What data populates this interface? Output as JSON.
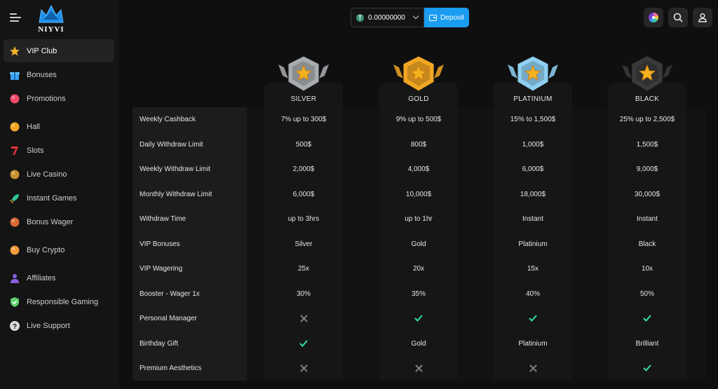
{
  "brand": {
    "name": "NIYVI"
  },
  "sidebar": {
    "items": [
      {
        "label": "VIP Club",
        "icon": "star-icon",
        "active": true
      },
      {
        "label": "Bonuses",
        "icon": "gift-icon"
      },
      {
        "label": "Promotions",
        "icon": "candy-icon"
      },
      {
        "label": "Hall",
        "icon": "chips-icon"
      },
      {
        "label": "Slots",
        "icon": "seven-icon"
      },
      {
        "label": "Live Casino",
        "icon": "cookie-icon"
      },
      {
        "label": "Instant Games",
        "icon": "rocket-icon"
      },
      {
        "label": "Bonus Wager",
        "icon": "bag-icon"
      },
      {
        "label": "Buy Crypto",
        "icon": "coin-icon"
      },
      {
        "label": "Affiliates",
        "icon": "people-icon"
      },
      {
        "label": "Responsible Gaming",
        "icon": "shield-check-icon"
      },
      {
        "label": "Live Support",
        "icon": "help-icon"
      }
    ]
  },
  "header": {
    "balance": "0.00000000",
    "currency_icon": "tether-icon",
    "deposit_label": "Deposit",
    "accent_color": "#1a9cf0"
  },
  "tiers": [
    {
      "name": "SILVER",
      "color": "#a8acb0"
    },
    {
      "name": "GOLD",
      "color": "#f2a623"
    },
    {
      "name": "PLATINIUM",
      "color": "#8fd0f2"
    },
    {
      "name": "BLACK",
      "color": "#3a3a3a"
    }
  ],
  "rows": [
    {
      "label": "Weekly Cashback",
      "values": [
        "7% up to 300$",
        "9% up to 500$",
        "15% to 1,500$",
        "25% up to 2,500$"
      ]
    },
    {
      "label": "Daily Withdraw Limit",
      "values": [
        "500$",
        "800$",
        "1,000$",
        "1,500$"
      ]
    },
    {
      "label": "Weekly Withdraw Limit",
      "values": [
        "2,000$",
        "4,000$",
        "6,000$",
        "9,000$"
      ]
    },
    {
      "label": "Monthly Withdraw Limit",
      "values": [
        "6,000$",
        "10,000$",
        "18,000$",
        "30,000$"
      ]
    },
    {
      "label": "Withdraw Time",
      "values": [
        "up to 3hrs",
        "up to 1hr",
        "Instant",
        "Instant"
      ]
    },
    {
      "label": "VIP Bonuses",
      "values": [
        "Silver",
        "Gold",
        "Platinium",
        "Black"
      ]
    },
    {
      "label": "VIP Wagering",
      "values": [
        "25x",
        "20x",
        "15x",
        "10x"
      ]
    },
    {
      "label": "Booster - Wager 1x",
      "values": [
        "30%",
        "35%",
        "40%",
        "50%"
      ]
    },
    {
      "label": "Personal Manager",
      "values": [
        "no",
        "yes",
        "yes",
        "yes"
      ]
    },
    {
      "label": "Birthday Gift",
      "values": [
        "yes",
        "Gold",
        "Platinium",
        "Brilliant"
      ]
    },
    {
      "label": "Premium Aesthetics",
      "values": [
        "no",
        "no",
        "no",
        "yes"
      ]
    }
  ]
}
